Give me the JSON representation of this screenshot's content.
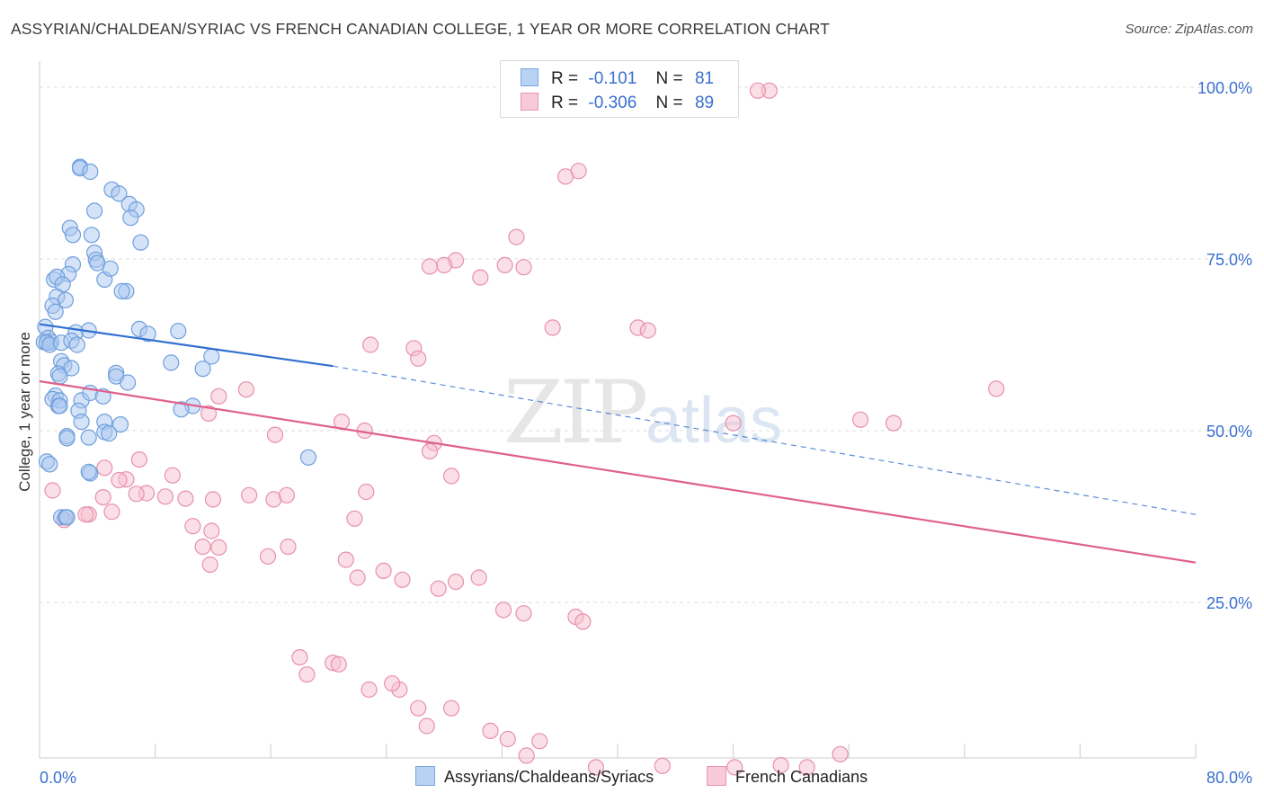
{
  "header": {
    "title": "ASSYRIAN/CHALDEAN/SYRIAC VS FRENCH CANADIAN COLLEGE, 1 YEAR OR MORE CORRELATION CHART",
    "source": "Source: ZipAtlas.com"
  },
  "watermark": {
    "zip": "ZIP",
    "atlas": "atlas"
  },
  "legend_top": {
    "r_label": "R =",
    "n_label": "N =",
    "rows": [
      {
        "r": "-0.101",
        "n": "81"
      },
      {
        "r": "-0.306",
        "n": "89"
      }
    ]
  },
  "chart_data": {
    "type": "scatter",
    "title": "ASSYRIAN/CHALDEAN/SYRIAC VS FRENCH CANADIAN COLLEGE, 1 YEAR OR MORE CORRELATION CHART",
    "xlabel": "",
    "ylabel": "College, 1 year or more",
    "xlim": [
      0,
      80
    ],
    "ylim": [
      0,
      100
    ],
    "x_tick_labels": [
      "0.0%",
      "80.0%"
    ],
    "y_tick_labels": [
      "25.0%",
      "50.0%",
      "75.0%",
      "100.0%"
    ],
    "y_ticks": [
      25,
      50,
      75,
      100
    ],
    "grid": true,
    "legend_position": "bottom",
    "colors": {
      "blue_fill": "#a9c8f0",
      "blue_stroke": "#6f9fdc",
      "blue_line": "#2f6fd0",
      "pink_fill": "#f6bfd0",
      "pink_stroke": "#e890ad",
      "pink_line": "#e0608a",
      "tick_label": "#3a6fd0",
      "grid": "#dddddd"
    },
    "series": [
      {
        "name": "Assyrians/Chaldeans/Syriacs",
        "trend": {
          "x_start": 0,
          "y_start": 65.5,
          "x_solid_end": 20.3,
          "y_solid_end": 59.4,
          "x_end": 80,
          "y_end": 37.8
        },
        "x": [
          2.8,
          2.8,
          3.5,
          3.8,
          5.0,
          5.5,
          6.2,
          6.7,
          6.3,
          7.0,
          2.1,
          2.3,
          3.6,
          3.8,
          3.9,
          2.3,
          4.0,
          2.0,
          4.5,
          6.0,
          4.9,
          5.7,
          1.0,
          1.2,
          1.6,
          1.2,
          1.8,
          0.9,
          1.1,
          2.5,
          0.4,
          0.6,
          0.8,
          0.3,
          0.5,
          0.7,
          1.5,
          2.2,
          3.4,
          6.9,
          7.5,
          9.6,
          2.6,
          1.5,
          1.7,
          2.2,
          1.3,
          1.4,
          1.1,
          0.9,
          1.4,
          2.9,
          3.5,
          4.4,
          5.3,
          5.3,
          6.1,
          1.3,
          1.4,
          2.7,
          4.5,
          5.6,
          11.9,
          11.3,
          10.6,
          9.8,
          2.9,
          3.4,
          0.5,
          0.7,
          3.5,
          1.5,
          1.8,
          1.9,
          4.5,
          4.8,
          1.9,
          1.9,
          3.4,
          18.6,
          9.1
        ],
        "y": [
          88.4,
          88.2,
          87.7,
          82.0,
          85.1,
          84.5,
          83.0,
          82.2,
          81.0,
          77.4,
          79.5,
          78.5,
          78.5,
          75.9,
          74.9,
          74.2,
          74.4,
          72.8,
          72.0,
          70.3,
          73.6,
          70.3,
          72.0,
          72.4,
          71.3,
          69.5,
          69.0,
          68.2,
          67.3,
          64.3,
          65.1,
          63.5,
          62.9,
          62.9,
          62.8,
          62.5,
          62.8,
          63.1,
          64.6,
          64.8,
          64.1,
          64.5,
          62.5,
          60.1,
          59.5,
          59.1,
          58.3,
          57.9,
          55.1,
          54.6,
          54.4,
          54.4,
          55.5,
          55.0,
          58.4,
          57.9,
          57.0,
          53.6,
          53.6,
          52.9,
          51.3,
          50.9,
          60.8,
          59.0,
          53.6,
          53.1,
          51.3,
          49.0,
          45.5,
          45.1,
          43.8,
          37.4,
          37.4,
          37.4,
          49.8,
          49.6,
          49.2,
          48.9,
          44.0,
          46.1,
          59.9
        ]
      },
      {
        "name": "French Canadians",
        "trend": {
          "x_start": 0,
          "y_start": 57.2,
          "x_end": 80,
          "y_end": 30.8
        },
        "x": [
          50.5,
          49.7,
          37.3,
          36.4,
          33.0,
          28.8,
          28.0,
          27.0,
          32.2,
          33.5,
          30.5,
          35.5,
          41.4,
          42.1,
          66.2,
          56.8,
          59.1,
          48.0,
          27.3,
          22.5,
          20.9,
          28.5,
          22.6,
          16.2,
          17.1,
          14.5,
          12.0,
          9.2,
          6.0,
          5.5,
          8.7,
          7.4,
          6.7,
          5.0,
          4.4,
          3.4,
          3.2,
          1.7,
          0.9,
          4.5,
          6.9,
          10.1,
          10.6,
          11.9,
          11.3,
          12.4,
          11.8,
          15.8,
          17.2,
          21.2,
          22.0,
          25.1,
          27.6,
          28.8,
          30.4,
          32.1,
          33.5,
          37.1,
          37.6,
          18.0,
          18.5,
          20.3,
          20.7,
          22.8,
          24.9,
          26.2,
          26.8,
          28.5,
          31.2,
          32.4,
          33.7,
          34.6,
          38.5,
          43.1,
          48.1,
          51.3,
          53.1,
          55.4,
          25.9,
          26.2,
          27.0,
          22.9,
          14.3,
          11.7,
          12.4,
          16.3,
          21.8,
          23.8,
          24.4
        ],
        "y": [
          99.5,
          99.5,
          87.8,
          87.0,
          78.2,
          74.8,
          74.1,
          73.9,
          74.1,
          73.8,
          72.3,
          65.0,
          65.0,
          64.6,
          56.1,
          51.6,
          51.1,
          51.1,
          48.2,
          50.0,
          51.3,
          43.4,
          41.1,
          40.0,
          40.6,
          40.6,
          40.0,
          43.5,
          42.9,
          42.8,
          40.4,
          40.9,
          40.8,
          38.2,
          40.3,
          37.8,
          37.8,
          37.0,
          41.3,
          44.6,
          45.8,
          40.1,
          36.1,
          35.4,
          33.1,
          33.0,
          30.5,
          31.7,
          33.1,
          31.2,
          28.6,
          28.3,
          27.0,
          28.0,
          28.6,
          23.9,
          23.4,
          22.9,
          22.2,
          17.0,
          14.5,
          16.2,
          16.0,
          12.3,
          12.3,
          9.6,
          7.0,
          9.6,
          6.3,
          5.1,
          2.7,
          4.8,
          1.0,
          1.2,
          1.0,
          1.3,
          1.0,
          2.9,
          62.0,
          60.5,
          47.0,
          62.5,
          56.0,
          52.5,
          55.0,
          49.4,
          37.2,
          29.6,
          13.2
        ]
      }
    ]
  }
}
